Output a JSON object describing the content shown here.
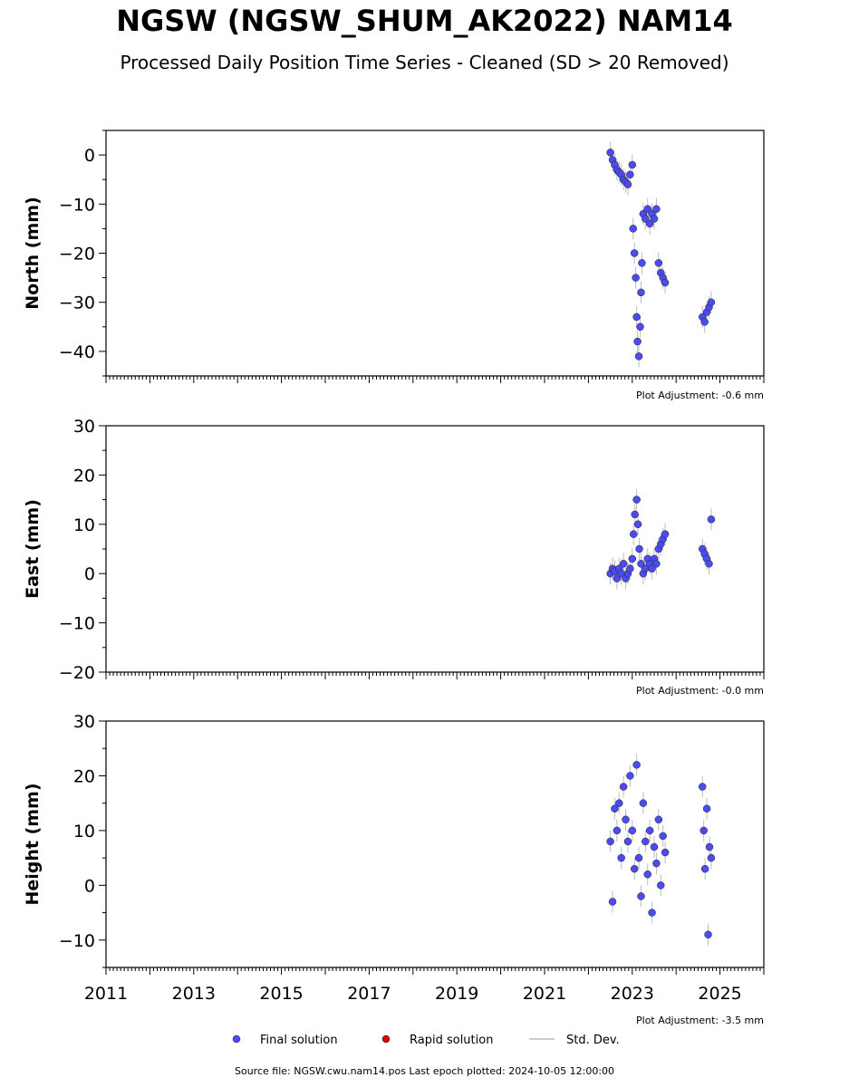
{
  "title": "NGSW (NGSW_SHUM_AK2022) NAM14",
  "subtitle": "Processed Daily Position Time Series - Cleaned (SD > 20 Removed)",
  "source": "Source file: NGSW.cwu.nam14.pos  Last epoch plotted: 2024-10-05 12:00:00",
  "legend": {
    "final": "Final solution",
    "rapid": "Rapid solution",
    "std": "Std. Dev."
  },
  "colors": {
    "final": "#4b4bf0",
    "rapid": "#e00000",
    "std": "#bbbbbb"
  },
  "chart_data": [
    {
      "type": "scatter",
      "ylabel": "North (mm)",
      "ylim": [
        -45,
        5
      ],
      "yticks": [
        0,
        -10,
        -20,
        -30,
        -40
      ],
      "xlim": [
        2011,
        2026
      ],
      "adjustment": "Plot Adjustment: -0.6 mm",
      "series": [
        {
          "name": "Final solution",
          "points": [
            [
              2022.5,
              0.5
            ],
            [
              2022.55,
              -1
            ],
            [
              2022.6,
              -2
            ],
            [
              2022.65,
              -3
            ],
            [
              2022.7,
              -3.5
            ],
            [
              2022.75,
              -4
            ],
            [
              2022.8,
              -5
            ],
            [
              2022.85,
              -5.5
            ],
            [
              2022.9,
              -6
            ],
            [
              2022.95,
              -4
            ],
            [
              2023.0,
              -2
            ],
            [
              2023.02,
              -15
            ],
            [
              2023.05,
              -20
            ],
            [
              2023.08,
              -25
            ],
            [
              2023.1,
              -33
            ],
            [
              2023.12,
              -38
            ],
            [
              2023.15,
              -41
            ],
            [
              2023.18,
              -35
            ],
            [
              2023.2,
              -28
            ],
            [
              2023.22,
              -22
            ],
            [
              2023.25,
              -12
            ],
            [
              2023.3,
              -13
            ],
            [
              2023.35,
              -11
            ],
            [
              2023.4,
              -14
            ],
            [
              2023.45,
              -12
            ],
            [
              2023.5,
              -13
            ],
            [
              2023.55,
              -11
            ],
            [
              2023.6,
              -22
            ],
            [
              2023.65,
              -24
            ],
            [
              2023.7,
              -25
            ],
            [
              2023.75,
              -26
            ],
            [
              2024.6,
              -33
            ],
            [
              2024.65,
              -34
            ],
            [
              2024.7,
              -32
            ],
            [
              2024.75,
              -31
            ],
            [
              2024.8,
              -30
            ]
          ]
        },
        {
          "name": "Rapid solution",
          "points": []
        }
      ]
    },
    {
      "type": "scatter",
      "ylabel": "East (mm)",
      "ylim": [
        -20,
        30
      ],
      "yticks": [
        30,
        20,
        10,
        0,
        -10,
        -20
      ],
      "xlim": [
        2011,
        2026
      ],
      "adjustment": "Plot Adjustment: -0.0 mm",
      "series": [
        {
          "name": "Final solution",
          "points": [
            [
              2022.5,
              0
            ],
            [
              2022.55,
              1
            ],
            [
              2022.6,
              0.5
            ],
            [
              2022.65,
              -1
            ],
            [
              2022.7,
              1
            ],
            [
              2022.75,
              0
            ],
            [
              2022.8,
              2
            ],
            [
              2022.85,
              -1
            ],
            [
              2022.9,
              0
            ],
            [
              2022.95,
              1
            ],
            [
              2023.0,
              3
            ],
            [
              2023.03,
              8
            ],
            [
              2023.06,
              12
            ],
            [
              2023.1,
              15
            ],
            [
              2023.13,
              10
            ],
            [
              2023.16,
              5
            ],
            [
              2023.2,
              2
            ],
            [
              2023.25,
              0
            ],
            [
              2023.3,
              1
            ],
            [
              2023.35,
              3
            ],
            [
              2023.4,
              2
            ],
            [
              2023.45,
              1
            ],
            [
              2023.5,
              3
            ],
            [
              2023.55,
              2
            ],
            [
              2023.6,
              5
            ],
            [
              2023.65,
              6
            ],
            [
              2023.7,
              7
            ],
            [
              2023.75,
              8
            ],
            [
              2024.6,
              5
            ],
            [
              2024.65,
              4
            ],
            [
              2024.7,
              3
            ],
            [
              2024.75,
              2
            ],
            [
              2024.8,
              11
            ]
          ]
        },
        {
          "name": "Rapid solution",
          "points": []
        }
      ]
    },
    {
      "type": "scatter",
      "ylabel": "Height (mm)",
      "ylim": [
        -15,
        30
      ],
      "yticks": [
        30,
        20,
        10,
        0,
        -10
      ],
      "xlim": [
        2011,
        2026
      ],
      "xticks": [
        2011,
        2013,
        2015,
        2017,
        2019,
        2021,
        2023,
        2025
      ],
      "adjustment": "Plot Adjustment: -3.5 mm",
      "series": [
        {
          "name": "Final solution",
          "points": [
            [
              2022.5,
              8
            ],
            [
              2022.55,
              -3
            ],
            [
              2022.6,
              14
            ],
            [
              2022.65,
              10
            ],
            [
              2022.7,
              15
            ],
            [
              2022.75,
              5
            ],
            [
              2022.8,
              18
            ],
            [
              2022.85,
              12
            ],
            [
              2022.9,
              8
            ],
            [
              2022.95,
              20
            ],
            [
              2023.0,
              10
            ],
            [
              2023.05,
              3
            ],
            [
              2023.1,
              22
            ],
            [
              2023.15,
              5
            ],
            [
              2023.2,
              -2
            ],
            [
              2023.25,
              15
            ],
            [
              2023.3,
              8
            ],
            [
              2023.35,
              2
            ],
            [
              2023.4,
              10
            ],
            [
              2023.45,
              -5
            ],
            [
              2023.5,
              7
            ],
            [
              2023.55,
              4
            ],
            [
              2023.6,
              12
            ],
            [
              2023.65,
              0
            ],
            [
              2023.7,
              9
            ],
            [
              2023.75,
              6
            ],
            [
              2024.6,
              18
            ],
            [
              2024.63,
              10
            ],
            [
              2024.66,
              3
            ],
            [
              2024.7,
              14
            ],
            [
              2024.73,
              -9
            ],
            [
              2024.76,
              7
            ],
            [
              2024.8,
              5
            ]
          ]
        },
        {
          "name": "Rapid solution",
          "points": []
        }
      ]
    }
  ]
}
